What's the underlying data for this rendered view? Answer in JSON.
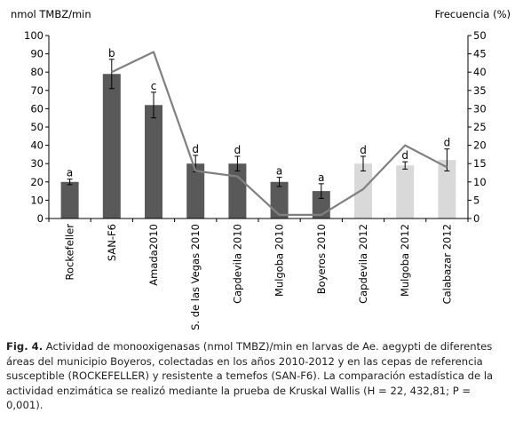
{
  "chart_data": {
    "type": "bar",
    "categories": [
      "Rockefeller",
      "SAN-F6",
      "Amada2010",
      "S. de las Vegas 2010",
      "Capdevila 2010",
      "Mulgoba 2010",
      "Boyeros 2010",
      "Capdevila 2012",
      "Mulgoba 2012",
      "Calabazar 2012"
    ],
    "bar_colors": [
      "#595959",
      "#595959",
      "#595959",
      "#595959",
      "#595959",
      "#595959",
      "#595959",
      "#d9d9d9",
      "#d9d9d9",
      "#d9d9d9"
    ],
    "left_axis": {
      "unit_label": "nmol TMBZ/min",
      "ylim": [
        0,
        100
      ],
      "ticks": [
        "0",
        "10",
        "20",
        "30",
        "40",
        "50",
        "60",
        "70",
        "80",
        "90",
        "100"
      ]
    },
    "right_axis": {
      "unit_label": "Frecuencia (%)",
      "ylim": [
        0,
        50
      ],
      "ticks": [
        "0",
        "5",
        "10",
        "15",
        "20",
        "25",
        "30",
        "35",
        "40",
        "45",
        "50"
      ]
    },
    "series": [
      {
        "type": "bar",
        "axis": "left",
        "values": [
          20,
          79,
          62,
          30,
          30,
          20,
          15,
          30,
          29,
          32
        ],
        "errors": [
          1.5,
          8,
          7,
          4.5,
          4,
          2.5,
          4,
          4,
          2,
          6
        ],
        "significance": [
          "a",
          "b",
          "c",
          "d",
          "d",
          "a",
          "a",
          "d",
          "d",
          "d"
        ]
      },
      {
        "type": "line",
        "axis": "right",
        "color": "#808080",
        "values": [
          null,
          40,
          45.5,
          13,
          11.5,
          1,
          1,
          8,
          20,
          14
        ]
      }
    ],
    "grid": false,
    "legend": "none"
  },
  "caption": {
    "label": "Fig. 4.",
    "text": "Actividad de monooxigenasas (nmol TMBZ)/min en larvas de Ae. aegypti de diferentes áreas del municipio Boyeros, colectadas en los años 2010-2012 y en las cepas de referencia susceptible (ROCKEFELLER) y resistente a temefos (SAN-F6). La comparación estadística de la actividad enzimática se realizó mediante la prueba de Kruskal Wallis (H = 22, 432,81; P = 0,001)."
  }
}
